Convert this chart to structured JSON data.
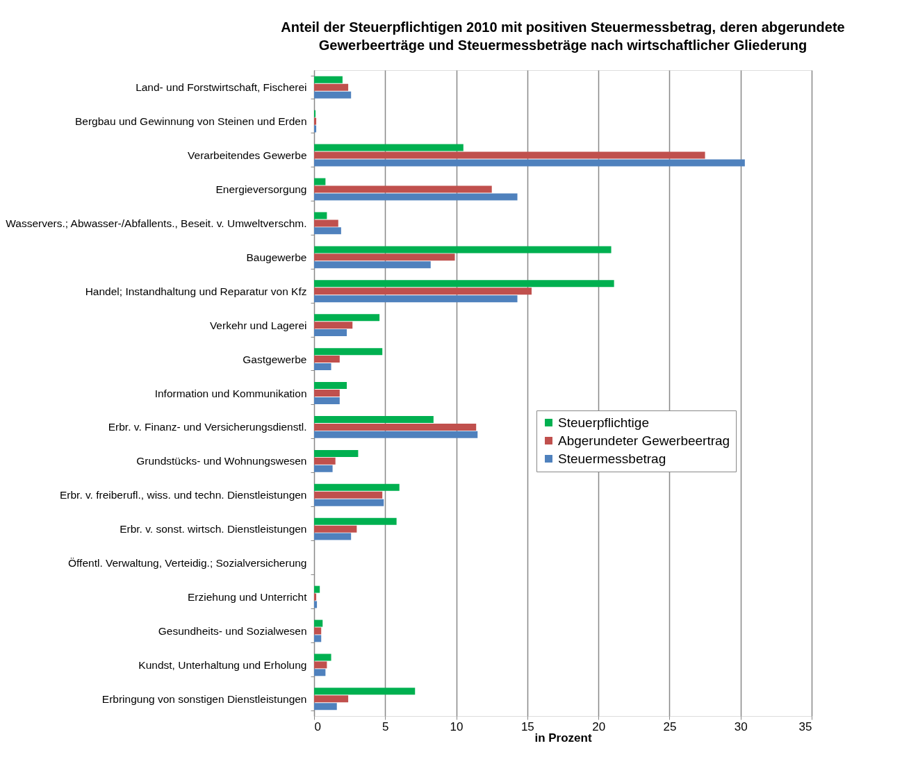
{
  "chart_data": {
    "type": "bar",
    "orientation": "horizontal",
    "title": "Anteil der Steuerpflichtigen 2010 mit positiven Steuermessbetrag, deren abgerundete Gewerbeerträge und Steuermessbeträge nach wirtschaftlicher Gliederung",
    "xlabel": "in Prozent",
    "categories": [
      "Land- und Forstwirtschaft, Fischerei",
      "Bergbau und Gewinnung von Steinen und Erden",
      "Verarbeitendes Gewerbe",
      "Energieversorgung",
      "Wasservers.; Abwasser-/Abfallents., Beseit. v. Umweltverschm.",
      "Baugewerbe",
      "Handel; Instandhaltung und Reparatur von Kfz",
      "Verkehr und Lagerei",
      "Gastgewerbe",
      "Information und Kommunikation",
      "Erbr. v. Finanz- und Versicherungsdienstl.",
      "Grundstücks- und Wohnungswesen",
      "Erbr. v. freiberufl., wiss. und techn. Dienstleistungen",
      "Erbr. v. sonst. wirtsch. Dienstleistungen",
      "Öffentl. Verwaltung, Verteidig.; Sozialversicherung",
      "Erziehung und Unterricht",
      "Gesundheits- und Sozialwesen",
      "Kundst, Unterhaltung und Erholung",
      "Erbringung von sonstigen Dienstleistungen"
    ],
    "series": [
      {
        "name": "Steuerpflichtige",
        "color": "#00b050",
        "values": [
          2.0,
          0.1,
          10.5,
          0.8,
          0.9,
          20.9,
          21.1,
          4.6,
          4.8,
          2.3,
          8.4,
          3.1,
          6.0,
          5.8,
          null,
          0.4,
          0.6,
          1.2,
          7.1
        ]
      },
      {
        "name": "Abgerundeter Gewerbeertrag",
        "color": "#c0504d",
        "values": [
          2.4,
          0.15,
          27.5,
          12.5,
          1.7,
          9.9,
          15.3,
          2.7,
          1.8,
          1.8,
          11.4,
          1.5,
          4.8,
          3.0,
          null,
          0.15,
          0.5,
          0.9,
          2.4
        ]
      },
      {
        "name": "Steuermessbetrag",
        "color": "#4f81bd",
        "values": [
          2.6,
          0.15,
          30.3,
          14.3,
          1.9,
          8.2,
          14.3,
          2.3,
          1.2,
          1.8,
          11.5,
          1.3,
          4.9,
          2.6,
          null,
          0.2,
          0.5,
          0.8,
          1.6
        ]
      }
    ],
    "xlim": [
      0,
      35
    ],
    "xticks": [
      0,
      5,
      10,
      15,
      20,
      25,
      30,
      35
    ],
    "grid": "x",
    "legend": "right"
  }
}
